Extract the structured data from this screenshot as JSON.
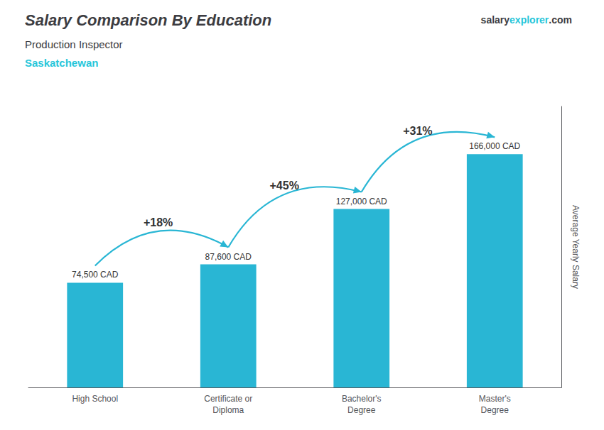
{
  "chart_data": {
    "type": "bar",
    "title": "Salary Comparison By Education",
    "subtitle": "Production Inspector",
    "ylabel": "Average Yearly Salary",
    "categories": [
      "High School",
      "Certificate or\nDiploma",
      "Bachelor's\nDegree",
      "Master's\nDegree"
    ],
    "values": [
      74500,
      87600,
      127000,
      166000
    ],
    "value_labels": [
      "74,500 CAD",
      "87,600 CAD",
      "127,000 CAD",
      "166,000 CAD"
    ],
    "data_labels": true,
    "color": "#29b6d4",
    "ylim": [
      0,
      200000
    ],
    "grid": false,
    "tick_labels": "x",
    "annotations": [
      {
        "text": "Saskatchewan",
        "color": "#26c6da"
      },
      {
        "text": "salary"
      },
      {
        "text": "explorer",
        "color": "#26c6da"
      },
      {
        "text": ".com"
      },
      {
        "text": "+18%",
        "from": "High School",
        "to": "Certificate or\nDiploma"
      },
      {
        "text": "+45%",
        "from": "Certificate or\nDiploma",
        "to": "Bachelor's\nDegree"
      },
      {
        "text": "+31%",
        "from": "Bachelor's\nDegree",
        "to": "Master's\nDegree"
      }
    ]
  }
}
